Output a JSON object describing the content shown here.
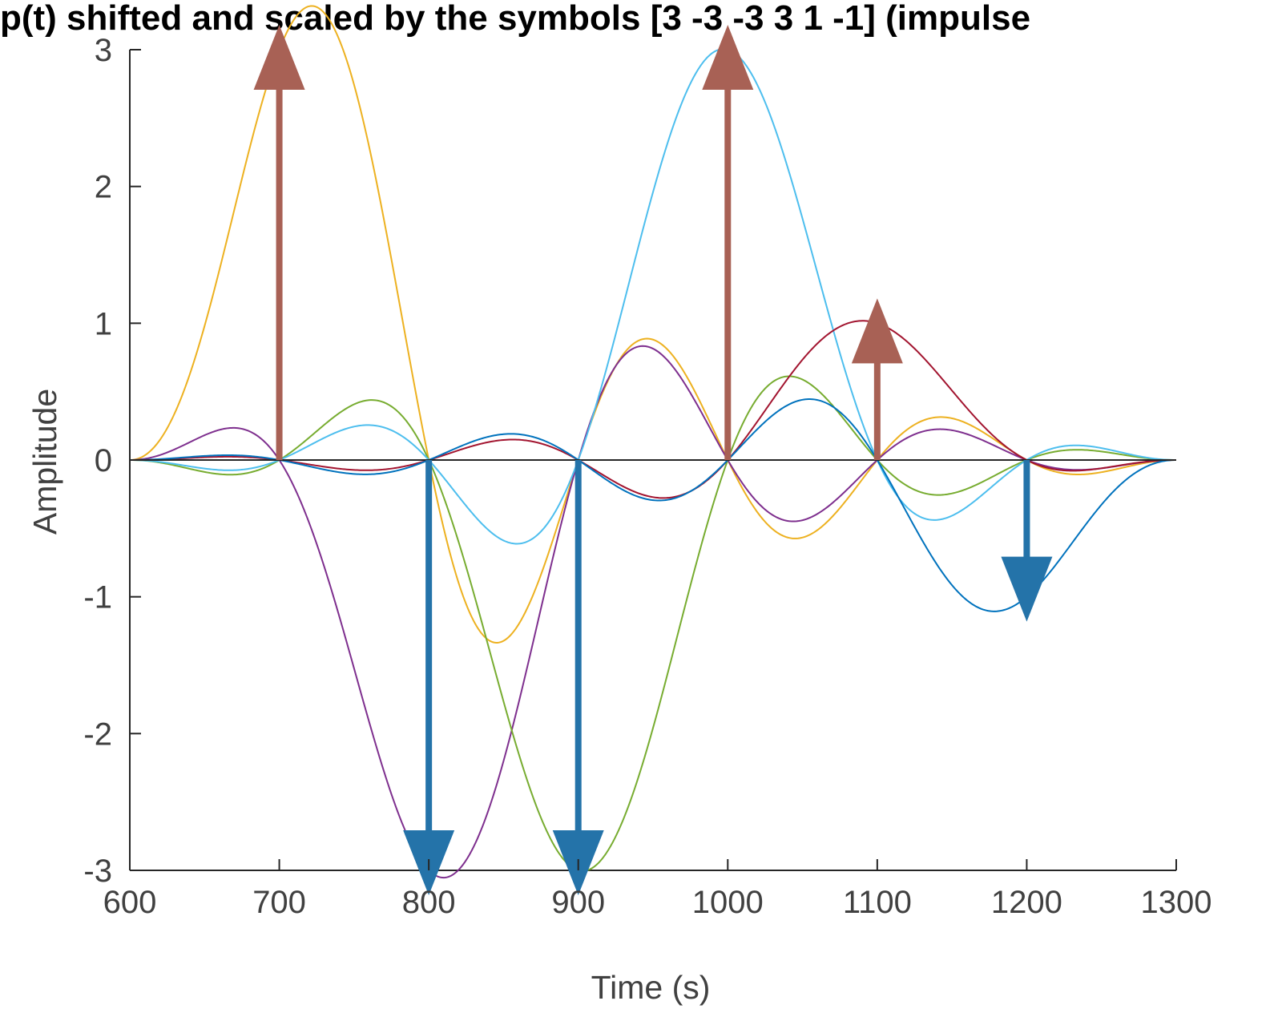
{
  "chart_data": {
    "type": "line",
    "title": "p(t) shifted and scaled by the symbols [3 -3 -3  3  1 -1] (impulse",
    "xlabel": "Time (s)",
    "ylabel": "Amplitude",
    "xlim": [
      600,
      1300
    ],
    "ylim": [
      -3,
      3
    ],
    "xticks": [
      "600",
      "700",
      "800",
      "900",
      "1000",
      "1100",
      "1200",
      "1300"
    ],
    "yticks": [
      "-3",
      "-2",
      "-1",
      "0",
      "1",
      "2",
      "3"
    ],
    "grid": false,
    "pulse": {
      "support": [
        600,
        1300
      ],
      "symbol_period": 100
    },
    "symbols": [
      {
        "time": 700,
        "value": 3
      },
      {
        "time": 800,
        "value": -3
      },
      {
        "time": 900,
        "value": -3
      },
      {
        "time": 1000,
        "value": 3
      },
      {
        "time": 1100,
        "value": 1
      },
      {
        "time": 1200,
        "value": -1
      }
    ],
    "series": [
      {
        "symbol_time": 700,
        "amplitude": 3,
        "color": "#EDB120"
      },
      {
        "symbol_time": 800,
        "amplitude": -3,
        "color": "#7E2F8E"
      },
      {
        "symbol_time": 900,
        "amplitude": -3,
        "color": "#77AC30"
      },
      {
        "symbol_time": 1000,
        "amplitude": 3,
        "color": "#4DBEEE"
      },
      {
        "symbol_time": 1100,
        "amplitude": 1,
        "color": "#A2142F"
      },
      {
        "symbol_time": 1200,
        "amplitude": -1,
        "color": "#0072BD"
      }
    ],
    "impulses": {
      "positive_color": "#A86155",
      "negative_color": "#2473A9"
    },
    "colors": {
      "axis": "#262626",
      "text": "#404040",
      "title": "#000000",
      "baseline": "#262626"
    }
  }
}
